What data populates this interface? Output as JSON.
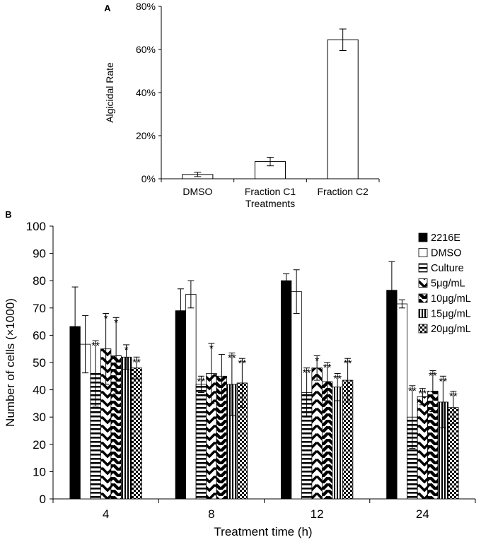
{
  "chart_data": [
    {
      "type": "bar",
      "panel_label": "A",
      "title": "",
      "xlabel": "Treatments",
      "ylabel": "Algicidal Rate",
      "ylim": [
        0,
        80
      ],
      "yticks": [
        "0%",
        "20%",
        "40%",
        "60%",
        "80%"
      ],
      "categories": [
        "DMSO",
        "Fraction C1",
        "Fraction C2"
      ],
      "values": [
        2,
        8,
        64.5
      ],
      "errors": [
        1,
        2,
        5
      ],
      "bar_color": "#ffffff",
      "grid": false
    },
    {
      "type": "bar",
      "panel_label": "B",
      "title": "",
      "xlabel": "Treatment time (h)",
      "ylabel": "Number of cells (×1000)",
      "ylim": [
        0,
        100
      ],
      "yticks": [
        "0",
        "10",
        "20",
        "30",
        "40",
        "50",
        "60",
        "70",
        "80",
        "90",
        "100"
      ],
      "categories": [
        "4",
        "8",
        "12",
        "24"
      ],
      "legend_position": "top-right",
      "grid": false,
      "series": [
        {
          "name": "2216E",
          "pattern": "solid",
          "values": [
            63.2,
            69,
            80,
            76.5
          ],
          "errors": [
            14.5,
            8,
            2.5,
            10.5
          ],
          "sig": [
            "",
            "",
            "",
            ""
          ]
        },
        {
          "name": "DMSO",
          "pattern": "empty",
          "values": [
            56.7,
            75,
            76,
            71.5
          ],
          "errors": [
            10.5,
            5,
            8,
            1.5
          ],
          "sig": [
            "",
            "",
            "",
            ""
          ]
        },
        {
          "name": "Culture",
          "pattern": "horizontal",
          "values": [
            46,
            42,
            39,
            30
          ],
          "errors": [
            12,
            3,
            9,
            11.5
          ],
          "sig": [
            "**",
            "**",
            "**",
            "**"
          ]
        },
        {
          "name": "5μg/mL",
          "pattern": "chevron",
          "values": [
            55,
            46,
            48,
            37.5
          ],
          "errors": [
            13,
            11,
            4.5,
            3
          ],
          "sig": [
            "*",
            "*",
            "*",
            "**"
          ]
        },
        {
          "name": "10μg/mL",
          "pattern": "chevron-dense",
          "values": [
            52.5,
            45,
            43,
            39.5
          ],
          "errors": [
            14,
            8,
            7,
            7.5
          ],
          "sig": [
            "*",
            "",
            "**",
            "**"
          ]
        },
        {
          "name": "15μg/mL",
          "pattern": "vertical",
          "values": [
            52,
            42,
            41,
            35.5
          ],
          "errors": [
            4.5,
            11.5,
            5,
            9.5
          ],
          "sig": [
            "*",
            "**",
            "**",
            "**"
          ]
        },
        {
          "name": "20μg/mL",
          "pattern": "check",
          "values": [
            48,
            42.5,
            43.5,
            33.5
          ],
          "errors": [
            4,
            9,
            8,
            6
          ],
          "sig": [
            "**",
            "**",
            "**",
            "**"
          ]
        }
      ]
    }
  ]
}
